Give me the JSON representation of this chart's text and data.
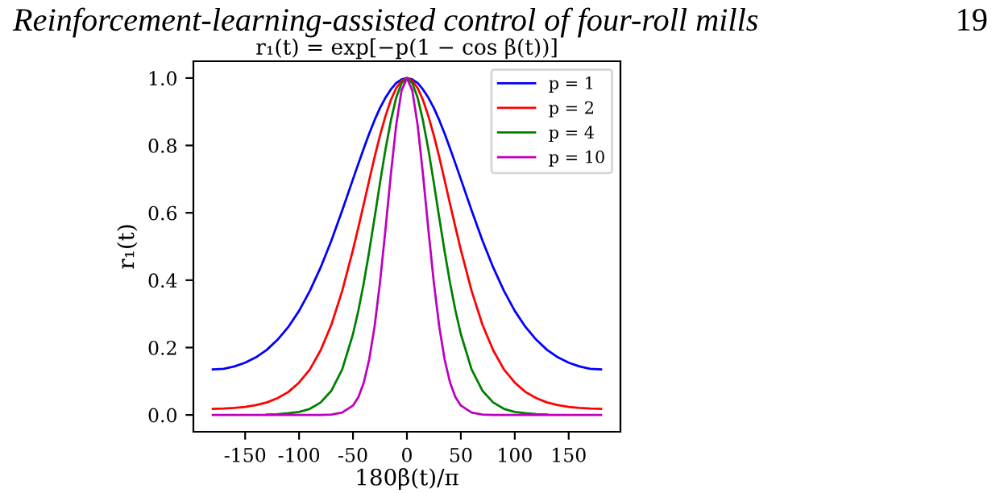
{
  "chart_data": {
    "type": "line",
    "title": "r₁(t) = exp[−p(1 − cos β(t))]",
    "xlabel": "180β(t)/π",
    "ylabel": "r₁(t)",
    "annotations": [
      "Reinforcement-learning-assisted control of four-roll mills",
      "19"
    ],
    "x": [
      -180,
      -170,
      -160,
      -150,
      -140,
      -130,
      -120,
      -110,
      -100,
      -90,
      -80,
      -70,
      -60,
      -50,
      -45,
      -40,
      -35,
      -30,
      -25,
      -20,
      -15,
      -10,
      -5,
      0,
      5,
      10,
      15,
      20,
      25,
      30,
      35,
      40,
      45,
      50,
      60,
      70,
      80,
      90,
      100,
      110,
      120,
      130,
      140,
      150,
      160,
      170,
      180
    ],
    "series": [
      {
        "name": "p = 1",
        "color": "#0000ff",
        "values": [
          0.135,
          0.137,
          0.144,
          0.155,
          0.171,
          0.193,
          0.223,
          0.261,
          0.309,
          0.368,
          0.438,
          0.518,
          0.607,
          0.7,
          0.746,
          0.791,
          0.835,
          0.875,
          0.911,
          0.941,
          0.966,
          0.985,
          0.996,
          1,
          0.996,
          0.985,
          0.966,
          0.941,
          0.911,
          0.875,
          0.835,
          0.791,
          0.746,
          0.7,
          0.607,
          0.518,
          0.438,
          0.368,
          0.309,
          0.261,
          0.223,
          0.193,
          0.171,
          0.155,
          0.144,
          0.137,
          0.135
        ]
      },
      {
        "name": "p = 2",
        "color": "#ff0000",
        "values": [
          0.018,
          0.019,
          0.021,
          0.024,
          0.029,
          0.037,
          0.05,
          0.068,
          0.096,
          0.135,
          0.192,
          0.268,
          0.368,
          0.49,
          0.557,
          0.626,
          0.696,
          0.765,
          0.829,
          0.886,
          0.934,
          0.97,
          0.992,
          1,
          0.992,
          0.97,
          0.934,
          0.886,
          0.829,
          0.765,
          0.696,
          0.626,
          0.557,
          0.49,
          0.368,
          0.268,
          0.192,
          0.135,
          0.096,
          0.068,
          0.05,
          0.037,
          0.029,
          0.024,
          0.021,
          0.019,
          0.018
        ]
      },
      {
        "name": "p = 4",
        "color": "#008000",
        "values": [
          null,
          null,
          null,
          null,
          null,
          0.001,
          0.002,
          0.005,
          0.009,
          0.018,
          0.037,
          0.072,
          0.135,
          0.24,
          0.31,
          0.392,
          0.485,
          0.585,
          0.688,
          0.786,
          0.872,
          0.941,
          0.985,
          1,
          0.985,
          0.941,
          0.872,
          0.786,
          0.688,
          0.585,
          0.485,
          0.392,
          0.31,
          0.24,
          0.135,
          0.072,
          0.037,
          0.018,
          0.009,
          0.005,
          0.002,
          0.001,
          null,
          null,
          null,
          null,
          null
        ]
      },
      {
        "name": "p = 10",
        "color": "#bf00bf",
        "values": [
          0,
          0,
          0,
          0,
          0,
          0,
          0,
          0,
          0,
          0,
          0,
          0.001,
          0.007,
          0.028,
          0.053,
          0.096,
          0.164,
          0.262,
          0.392,
          0.547,
          0.711,
          0.859,
          0.963,
          1,
          0.963,
          0.859,
          0.711,
          0.547,
          0.392,
          0.262,
          0.164,
          0.096,
          0.053,
          0.028,
          0.007,
          0.001,
          0,
          0,
          0,
          0,
          0,
          0,
          0,
          0,
          0,
          0,
          0
        ]
      }
    ],
    "xlim": [
      -198,
      198
    ],
    "ylim": [
      -0.05,
      1.05
    ],
    "xticks": [
      -150,
      -100,
      -50,
      0,
      50,
      100,
      150
    ],
    "yticks": [
      {
        "value": 0,
        "label": "0.0"
      },
      0.2,
      0.4,
      0.6,
      0.8,
      {
        "value": 1,
        "label": "1.0"
      }
    ],
    "legend": "top right",
    "grid": false,
    "marker": "none",
    "line_style": "solid"
  }
}
